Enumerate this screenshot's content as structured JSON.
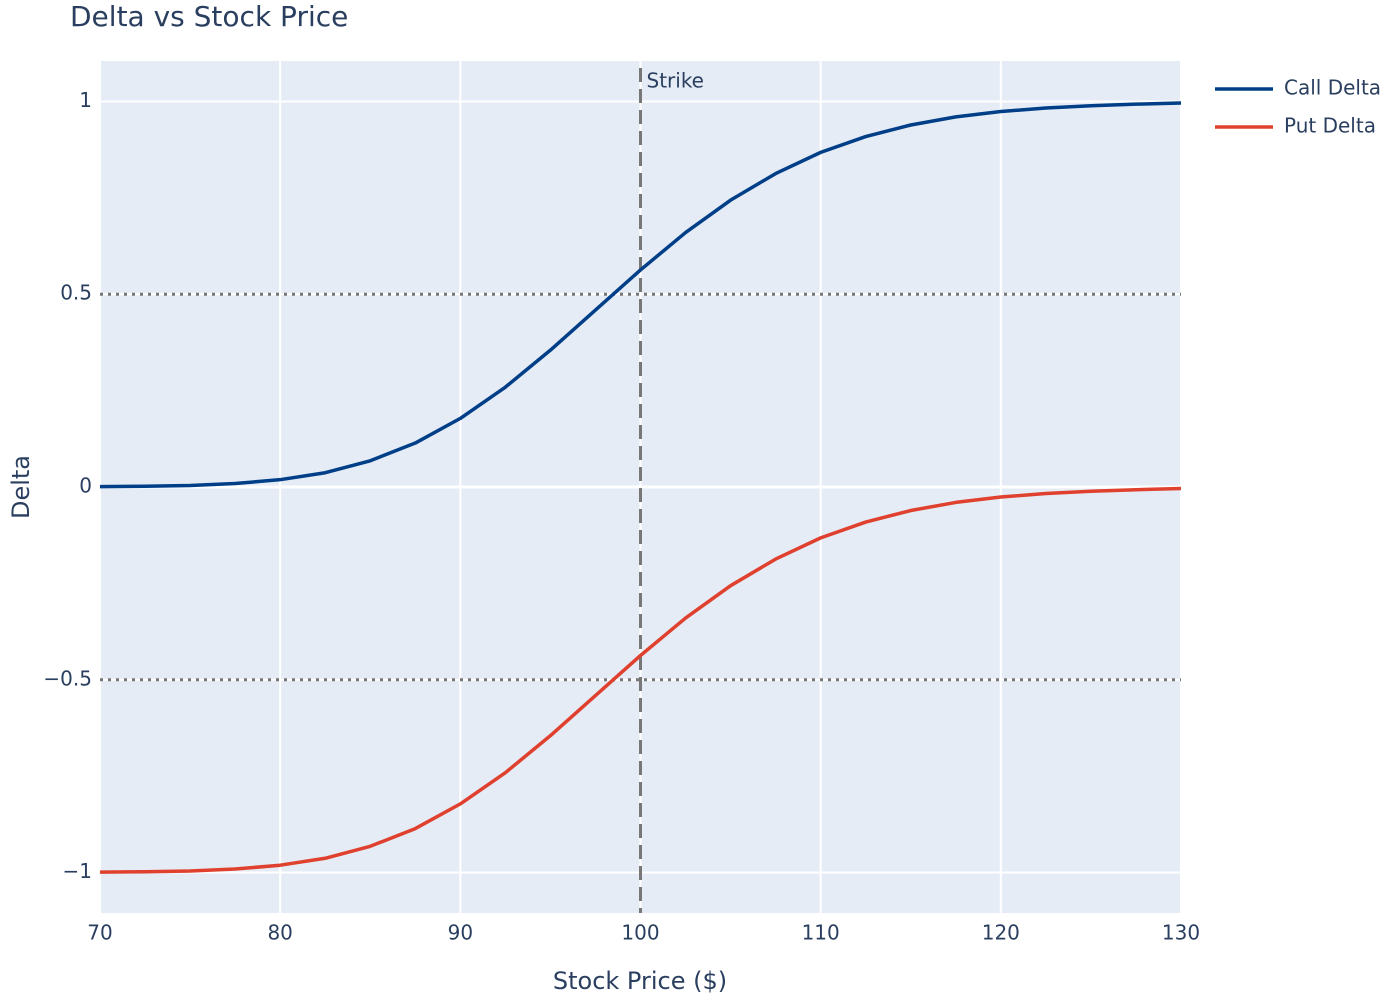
{
  "chart_data": {
    "type": "line",
    "title": "Delta vs Stock Price",
    "x_label": "Stock Price ($)",
    "y_label": "Delta",
    "x": [
      70,
      72.5,
      75,
      77.5,
      80,
      82.5,
      85,
      87.5,
      90,
      92.5,
      95,
      97.5,
      100,
      102.5,
      105,
      107.5,
      110,
      112.5,
      115,
      117.5,
      120,
      122.5,
      125,
      127.5,
      130
    ],
    "series": [
      {
        "name": "Call Delta",
        "color": "#003f87",
        "values": [
          0.001,
          0.002,
          0.004,
          0.009,
          0.019,
          0.037,
          0.068,
          0.114,
          0.178,
          0.259,
          0.355,
          0.459,
          0.563,
          0.66,
          0.744,
          0.813,
          0.868,
          0.909,
          0.939,
          0.96,
          0.974,
          0.983,
          0.989,
          0.993,
          0.996
        ]
      },
      {
        "name": "Put Delta",
        "color": "#e0402e",
        "values": [
          -0.999,
          -0.998,
          -0.996,
          -0.991,
          -0.981,
          -0.963,
          -0.932,
          -0.886,
          -0.822,
          -0.741,
          -0.645,
          -0.541,
          -0.437,
          -0.34,
          -0.256,
          -0.187,
          -0.132,
          -0.091,
          -0.061,
          -0.04,
          -0.026,
          -0.017,
          -0.011,
          -0.007,
          -0.004
        ]
      }
    ],
    "xlim": [
      70,
      130
    ],
    "xticks": [
      70,
      80,
      90,
      100,
      110,
      120,
      130
    ],
    "ylim": [
      -1.105,
      1.105
    ],
    "yticks": [
      {
        "value": -1,
        "label": "−1"
      },
      {
        "value": -0.5,
        "label": "−0.5"
      },
      0,
      0.5,
      1
    ],
    "hlines": [
      0.5,
      -0.5
    ],
    "vline": {
      "x": 100,
      "label": "Strike"
    },
    "grid": true,
    "legend": "right"
  }
}
